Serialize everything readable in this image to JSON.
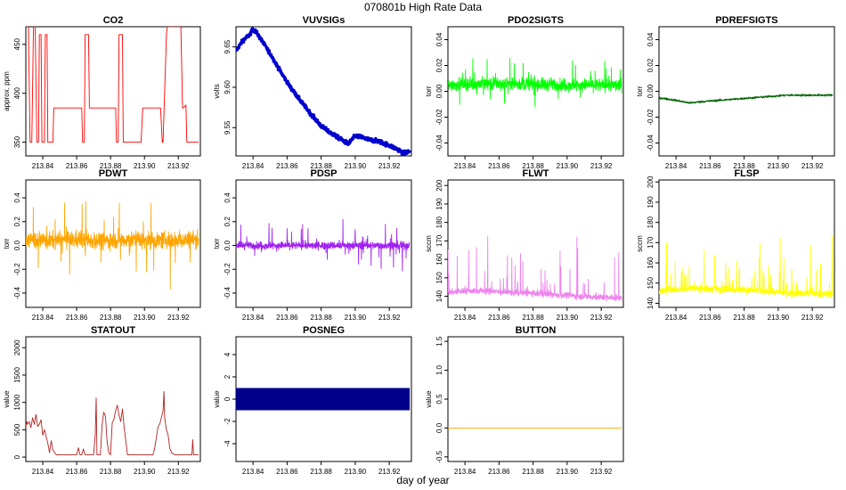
{
  "figure": {
    "title": "070801b   High Rate Data",
    "xlabel": "day of year"
  },
  "chart_data": [
    {
      "type": "line",
      "title": "CO2",
      "ylabel": "approx. ppm",
      "color": "#ff0000",
      "xlim": [
        213.83,
        213.933
      ],
      "xticks": [
        213.84,
        213.86,
        213.88,
        213.9,
        213.92
      ],
      "ylim": [
        336,
        468
      ],
      "yticks": [
        350,
        400,
        450
      ],
      "series": [
        {
          "x": [
            213.83,
            213.8315,
            213.8325,
            213.8335,
            213.8345,
            213.8355,
            213.8365,
            213.8375,
            213.838,
            213.839,
            213.8395,
            213.841,
            213.8415,
            213.8425,
            213.843,
            213.846,
            213.8465,
            213.863,
            213.8635,
            213.8645,
            213.865,
            213.867,
            213.8675,
            213.883,
            213.8835,
            213.8845,
            213.885,
            213.887,
            213.8875,
            213.898,
            213.899,
            213.9095,
            213.9105,
            213.911,
            213.913,
            213.9135,
            213.9215,
            213.9225,
            213.923,
            213.9245,
            213.925,
            213.932
          ],
          "y": [
            468,
            468,
            350,
            350,
            468,
            468,
            350,
            350,
            460,
            460,
            350,
            350,
            460,
            460,
            350,
            350,
            385,
            385,
            350,
            350,
            460,
            460,
            385,
            385,
            350,
            350,
            460,
            460,
            350,
            350,
            385,
            385,
            350,
            350,
            460,
            468,
            468,
            385,
            385,
            388,
            350,
            350
          ]
        }
      ]
    },
    {
      "type": "line",
      "title": "VUVSIGs",
      "ylabel": "volts",
      "color": "#0000cd",
      "xlim": [
        213.83,
        213.933
      ],
      "xticks": [
        213.84,
        213.86,
        213.88,
        213.9,
        213.92
      ],
      "ylim": [
        9.515,
        9.675
      ],
      "yticks": [
        9.55,
        9.6,
        9.65
      ],
      "series": [
        {
          "x": [
            213.83,
            213.834,
            213.838,
            213.84,
            213.842,
            213.846,
            213.85,
            213.856,
            213.862,
            213.868,
            213.874,
            213.88,
            213.886,
            213.892,
            213.896,
            213.898,
            213.9,
            213.904,
            213.908,
            213.914,
            213.92,
            213.926,
            213.928,
            213.932
          ],
          "y": [
            9.645,
            9.658,
            9.665,
            9.672,
            9.668,
            9.655,
            9.642,
            9.62,
            9.6,
            9.583,
            9.567,
            9.552,
            9.543,
            9.535,
            9.53,
            9.535,
            9.54,
            9.538,
            9.535,
            9.533,
            9.528,
            9.522,
            9.518,
            9.521
          ]
        }
      ]
    },
    {
      "type": "line",
      "title": "PDO2SIGTS",
      "ylabel": "torr",
      "color": "#00ff00",
      "xlim": [
        213.83,
        213.933
      ],
      "xticks": [
        213.84,
        213.86,
        213.88,
        213.9,
        213.92
      ],
      "ylim": [
        -0.05,
        0.05
      ],
      "yticks": [
        -0.04,
        -0.02,
        0.0,
        0.02,
        0.04
      ],
      "series": [
        {
          "x": [
            213.83,
            213.845,
            213.86,
            213.875,
            213.89,
            213.905,
            213.92,
            213.932
          ],
          "y": [
            0.005,
            0.006,
            0.006,
            0.006,
            0.005,
            0.005,
            0.005,
            0.005
          ]
        }
      ]
    },
    {
      "type": "line",
      "title": "PDREFSIGTS",
      "ylabel": "torr",
      "color": "#006400",
      "xlim": [
        213.83,
        213.933
      ],
      "xticks": [
        213.84,
        213.86,
        213.88,
        213.9,
        213.92
      ],
      "ylim": [
        -0.05,
        0.05
      ],
      "yticks": [
        -0.04,
        -0.02,
        0.0,
        0.02,
        0.04
      ],
      "series": [
        {
          "x": [
            213.83,
            213.84,
            213.848,
            213.855,
            213.865,
            213.875,
            213.885,
            213.895,
            213.905,
            213.915,
            213.925,
            213.932
          ],
          "y": [
            -0.005,
            -0.007,
            -0.009,
            -0.008,
            -0.007,
            -0.006,
            -0.005,
            -0.004,
            -0.003,
            -0.003,
            -0.003,
            -0.003
          ]
        }
      ]
    },
    {
      "type": "line",
      "title": "PDWT",
      "ylabel": "torr",
      "color": "#ffa500",
      "xlim": [
        213.83,
        213.933
      ],
      "xticks": [
        213.84,
        213.86,
        213.88,
        213.9,
        213.92
      ],
      "ylim": [
        -0.52,
        0.55
      ],
      "yticks": [
        -0.4,
        -0.2,
        0.0,
        0.2,
        0.4
      ],
      "series": [
        {
          "x": [
            213.83,
            213.845,
            213.86,
            213.875,
            213.89,
            213.905,
            213.92,
            213.932
          ],
          "y": [
            0.05,
            0.04,
            0.05,
            0.04,
            0.05,
            0.04,
            0.05,
            0.05
          ]
        }
      ]
    },
    {
      "type": "line",
      "title": "PDSP",
      "ylabel": "torr",
      "color": "#a020f0",
      "xlim": [
        213.83,
        213.933
      ],
      "xticks": [
        213.84,
        213.86,
        213.88,
        213.9,
        213.92
      ],
      "ylim": [
        -0.52,
        0.55
      ],
      "yticks": [
        -0.4,
        -0.2,
        0.0,
        0.2,
        0.4
      ],
      "series": [
        {
          "x": [
            213.83,
            213.845,
            213.86,
            213.875,
            213.89,
            213.905,
            213.92,
            213.932
          ],
          "y": [
            0.0,
            0.0,
            0.0,
            0.0,
            0.0,
            0.0,
            0.0,
            0.0
          ]
        }
      ]
    },
    {
      "type": "line",
      "title": "FLWT",
      "ylabel": "sccm",
      "color": "#ee82ee",
      "xlim": [
        213.83,
        213.933
      ],
      "xticks": [
        213.84,
        213.86,
        213.88,
        213.9,
        213.92
      ],
      "ylim": [
        134,
        203
      ],
      "yticks": [
        140,
        150,
        160,
        170,
        180,
        190,
        200
      ],
      "series": [
        {
          "x": [
            213.83,
            213.84,
            213.85,
            213.86,
            213.87,
            213.88,
            213.89,
            213.9,
            213.91,
            213.92,
            213.932
          ],
          "y": [
            142,
            143,
            143,
            142.5,
            142,
            141.5,
            141,
            140.5,
            140,
            139.5,
            139
          ]
        }
      ]
    },
    {
      "type": "line",
      "title": "FLSP",
      "ylabel": "sccm",
      "color": "#ffff00",
      "xlim": [
        213.83,
        213.933
      ],
      "xticks": [
        213.84,
        213.86,
        213.88,
        213.9,
        213.92
      ],
      "ylim": [
        138,
        201
      ],
      "yticks": [
        140,
        150,
        160,
        170,
        180,
        190,
        200
      ],
      "series": [
        {
          "x": [
            213.83,
            213.84,
            213.85,
            213.86,
            213.87,
            213.88,
            213.89,
            213.9,
            213.91,
            213.92,
            213.932
          ],
          "y": [
            146,
            147,
            147.5,
            147,
            147,
            146.5,
            146,
            145.5,
            145,
            145,
            144.5
          ]
        }
      ]
    },
    {
      "type": "line",
      "title": "STATOUT",
      "ylabel": "value",
      "color": "#b22222",
      "xlim": [
        213.83,
        213.933
      ],
      "xticks": [
        213.84,
        213.86,
        213.88,
        213.9,
        213.92
      ],
      "ylim": [
        -80,
        2200
      ],
      "yticks": [
        0,
        500,
        1000,
        1500,
        2000
      ],
      "series": [
        {
          "x": [
            213.83,
            213.8305,
            213.831,
            213.832,
            213.833,
            213.834,
            213.835,
            213.836,
            213.837,
            213.838,
            213.839,
            213.84,
            213.841,
            213.842,
            213.843,
            213.844,
            213.845,
            213.846,
            213.848,
            213.85,
            213.86,
            213.861,
            213.862,
            213.863,
            213.864,
            213.865,
            213.866,
            213.87,
            213.871,
            213.8715,
            213.872,
            213.873,
            213.874,
            213.875,
            213.876,
            213.877,
            213.878,
            213.879,
            213.88,
            213.881,
            213.882,
            213.883,
            213.884,
            213.885,
            213.886,
            213.887,
            213.888,
            213.89,
            213.905,
            213.906,
            213.907,
            213.908,
            213.909,
            213.91,
            213.911,
            213.9115,
            213.912,
            213.913,
            213.914,
            213.915,
            213.916,
            213.918,
            213.928,
            213.9285,
            213.929,
            213.932
          ],
          "y": [
            550,
            650,
            600,
            650,
            540,
            720,
            600,
            780,
            560,
            600,
            680,
            400,
            500,
            380,
            250,
            80,
            300,
            130,
            40,
            40,
            40,
            170,
            40,
            40,
            150,
            40,
            40,
            40,
            420,
            1080,
            40,
            40,
            40,
            580,
            820,
            750,
            280,
            80,
            40,
            620,
            700,
            850,
            950,
            760,
            650,
            880,
            540,
            40,
            40,
            150,
            350,
            550,
            600,
            720,
            850,
            1200,
            700,
            500,
            400,
            160,
            80,
            40,
            40,
            320,
            40,
            40
          ]
        }
      ]
    },
    {
      "type": "area",
      "title": "POSNEG",
      "ylabel": "value",
      "color": "#00008b",
      "xlim": [
        213.83,
        213.933
      ],
      "xticks": [
        213.84,
        213.86,
        213.88,
        213.9,
        213.92
      ],
      "ylim": [
        -5.6,
        5.6
      ],
      "yticks": [
        -4,
        -2,
        0,
        2,
        4
      ],
      "series": [
        {
          "x": [
            213.83,
            213.932
          ],
          "y_min": [
            -1,
            -1
          ],
          "y_max": [
            1,
            1
          ]
        }
      ]
    },
    {
      "type": "line",
      "title": "BUTTON",
      "ylabel": "value",
      "color": "#ffa500",
      "xlim": [
        213.83,
        213.933
      ],
      "xticks": [
        213.84,
        213.86,
        213.88,
        213.9,
        213.92
      ],
      "ylim": [
        -0.58,
        1.58
      ],
      "yticks": [
        -0.5,
        0.0,
        0.5,
        1.0,
        1.5
      ],
      "series": [
        {
          "x": [
            213.83,
            213.932
          ],
          "y": [
            0.0,
            0.0
          ]
        }
      ]
    }
  ]
}
